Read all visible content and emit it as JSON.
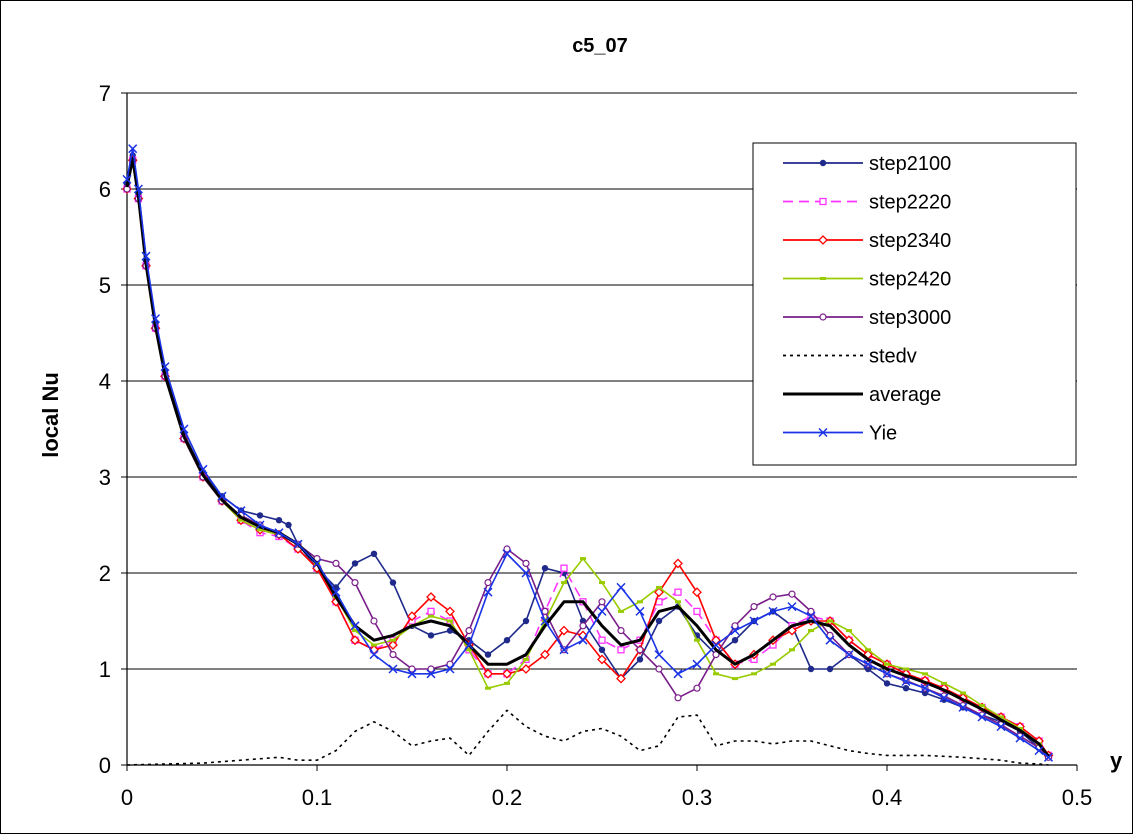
{
  "chart_data": {
    "type": "line",
    "title": "c5_07",
    "xlabel": "y",
    "ylabel": "local Nu",
    "xlim": [
      0,
      0.5
    ],
    "ylim": [
      0,
      7
    ],
    "xticks": [
      "0",
      "0.1",
      "0.2",
      "0.3",
      "0.4",
      "0.5"
    ],
    "yticks": [
      "0",
      "1",
      "2",
      "3",
      "4",
      "5",
      "6",
      "7"
    ],
    "grid": "horizontal",
    "legend_position": "top-right",
    "series": [
      {
        "name": "step2100",
        "color": "#1f2a8a",
        "marker": "dot",
        "dash": "",
        "x": [
          0,
          0.003,
          0.006,
          0.01,
          0.015,
          0.02,
          0.03,
          0.04,
          0.05,
          0.06,
          0.07,
          0.08,
          0.085,
          0.09,
          0.1,
          0.11,
          0.12,
          0.13,
          0.14,
          0.15,
          0.16,
          0.17,
          0.18,
          0.19,
          0.2,
          0.21,
          0.22,
          0.23,
          0.24,
          0.25,
          0.26,
          0.27,
          0.28,
          0.29,
          0.3,
          0.31,
          0.32,
          0.33,
          0.34,
          0.35,
          0.36,
          0.37,
          0.38,
          0.39,
          0.4,
          0.41,
          0.42,
          0.43,
          0.44,
          0.45,
          0.46,
          0.47,
          0.48,
          0.485
        ],
        "y": [
          6.05,
          6.35,
          5.95,
          5.25,
          4.6,
          4.1,
          3.45,
          3.05,
          2.8,
          2.65,
          2.6,
          2.55,
          2.5,
          2.3,
          2.05,
          1.85,
          2.1,
          2.2,
          1.9,
          1.45,
          1.35,
          1.4,
          1.3,
          1.15,
          1.3,
          1.5,
          2.05,
          2.0,
          1.5,
          1.2,
          0.9,
          1.1,
          1.5,
          1.65,
          1.35,
          1.15,
          1.3,
          1.5,
          1.6,
          1.45,
          1.0,
          1.0,
          1.15,
          1.0,
          0.85,
          0.8,
          0.75,
          0.68,
          0.6,
          0.52,
          0.45,
          0.35,
          0.18,
          0.08
        ]
      },
      {
        "name": "step2220",
        "color": "#ff33ff",
        "marker": "square",
        "dash": "10,6",
        "x": [
          0,
          0.003,
          0.006,
          0.01,
          0.015,
          0.02,
          0.03,
          0.04,
          0.05,
          0.06,
          0.07,
          0.08,
          0.09,
          0.1,
          0.11,
          0.12,
          0.13,
          0.14,
          0.15,
          0.16,
          0.17,
          0.18,
          0.19,
          0.2,
          0.21,
          0.22,
          0.23,
          0.24,
          0.25,
          0.26,
          0.27,
          0.28,
          0.29,
          0.3,
          0.31,
          0.32,
          0.33,
          0.34,
          0.35,
          0.36,
          0.37,
          0.38,
          0.39,
          0.4,
          0.41,
          0.42,
          0.43,
          0.44,
          0.45,
          0.46,
          0.47,
          0.48,
          0.485
        ],
        "y": [
          6.0,
          6.3,
          5.9,
          5.2,
          4.55,
          4.05,
          3.4,
          3.0,
          2.75,
          2.55,
          2.42,
          2.38,
          2.25,
          2.05,
          1.7,
          1.3,
          1.2,
          1.3,
          1.5,
          1.6,
          1.5,
          1.2,
          0.95,
          0.95,
          1.1,
          1.6,
          2.05,
          1.7,
          1.3,
          1.2,
          1.3,
          1.7,
          1.8,
          1.6,
          1.3,
          1.05,
          1.1,
          1.25,
          1.45,
          1.55,
          1.5,
          1.3,
          1.15,
          1.05,
          0.95,
          0.88,
          0.8,
          0.7,
          0.6,
          0.5,
          0.4,
          0.25,
          0.1
        ]
      },
      {
        "name": "step2340",
        "color": "#ff0000",
        "marker": "diamond",
        "dash": "",
        "x": [
          0,
          0.003,
          0.006,
          0.01,
          0.015,
          0.02,
          0.03,
          0.04,
          0.05,
          0.06,
          0.07,
          0.08,
          0.09,
          0.1,
          0.11,
          0.12,
          0.13,
          0.14,
          0.15,
          0.16,
          0.17,
          0.18,
          0.19,
          0.2,
          0.21,
          0.22,
          0.23,
          0.24,
          0.25,
          0.26,
          0.27,
          0.28,
          0.29,
          0.3,
          0.31,
          0.32,
          0.33,
          0.34,
          0.35,
          0.36,
          0.37,
          0.38,
          0.39,
          0.4,
          0.41,
          0.42,
          0.43,
          0.44,
          0.45,
          0.46,
          0.47,
          0.48,
          0.485
        ],
        "y": [
          6.0,
          6.3,
          5.9,
          5.2,
          4.55,
          4.05,
          3.4,
          3.0,
          2.75,
          2.55,
          2.45,
          2.4,
          2.25,
          2.05,
          1.7,
          1.3,
          1.2,
          1.25,
          1.55,
          1.75,
          1.6,
          1.25,
          0.95,
          0.95,
          1.0,
          1.15,
          1.4,
          1.35,
          1.1,
          0.9,
          1.2,
          1.8,
          2.1,
          1.8,
          1.3,
          1.05,
          1.15,
          1.3,
          1.4,
          1.5,
          1.5,
          1.3,
          1.15,
          1.05,
          0.95,
          0.88,
          0.8,
          0.7,
          0.6,
          0.5,
          0.4,
          0.25,
          0.1
        ]
      },
      {
        "name": "step2420",
        "color": "#99cc00",
        "marker": "dash",
        "dash": "",
        "x": [
          0,
          0.003,
          0.006,
          0.01,
          0.015,
          0.02,
          0.03,
          0.04,
          0.05,
          0.06,
          0.07,
          0.08,
          0.09,
          0.1,
          0.11,
          0.12,
          0.13,
          0.14,
          0.15,
          0.16,
          0.17,
          0.18,
          0.19,
          0.2,
          0.21,
          0.22,
          0.23,
          0.24,
          0.25,
          0.26,
          0.27,
          0.28,
          0.29,
          0.3,
          0.31,
          0.32,
          0.33,
          0.34,
          0.35,
          0.36,
          0.37,
          0.38,
          0.39,
          0.4,
          0.41,
          0.42,
          0.43,
          0.44,
          0.45,
          0.46,
          0.47,
          0.48,
          0.485
        ],
        "y": [
          6.0,
          6.3,
          5.9,
          5.2,
          4.55,
          4.05,
          3.4,
          3.0,
          2.75,
          2.55,
          2.45,
          2.4,
          2.3,
          2.1,
          1.75,
          1.4,
          1.25,
          1.3,
          1.45,
          1.55,
          1.5,
          1.2,
          0.8,
          0.85,
          1.1,
          1.5,
          1.9,
          2.15,
          1.9,
          1.6,
          1.7,
          1.85,
          1.7,
          1.3,
          0.95,
          0.9,
          0.95,
          1.05,
          1.2,
          1.4,
          1.5,
          1.4,
          1.2,
          1.05,
          1.0,
          0.95,
          0.85,
          0.75,
          0.62,
          0.5,
          0.38,
          0.22,
          0.1
        ]
      },
      {
        "name": "step3000",
        "color": "#7a1f8a",
        "marker": "circle",
        "dash": "",
        "x": [
          0,
          0.003,
          0.006,
          0.01,
          0.015,
          0.02,
          0.03,
          0.04,
          0.05,
          0.06,
          0.07,
          0.08,
          0.09,
          0.1,
          0.11,
          0.12,
          0.13,
          0.14,
          0.15,
          0.16,
          0.17,
          0.18,
          0.19,
          0.2,
          0.21,
          0.22,
          0.23,
          0.24,
          0.25,
          0.26,
          0.27,
          0.28,
          0.29,
          0.3,
          0.31,
          0.32,
          0.33,
          0.34,
          0.35,
          0.36,
          0.37,
          0.38,
          0.39,
          0.4,
          0.41,
          0.42,
          0.43,
          0.44,
          0.45,
          0.46,
          0.47,
          0.48,
          0.485
        ],
        "y": [
          6.0,
          6.3,
          5.9,
          5.2,
          4.55,
          4.05,
          3.4,
          3.0,
          2.75,
          2.6,
          2.5,
          2.4,
          2.3,
          2.15,
          2.1,
          1.9,
          1.5,
          1.15,
          1.0,
          1.0,
          1.05,
          1.4,
          1.9,
          2.25,
          2.1,
          1.6,
          1.2,
          1.45,
          1.7,
          1.4,
          1.2,
          1.0,
          0.7,
          0.8,
          1.15,
          1.45,
          1.65,
          1.75,
          1.78,
          1.6,
          1.35,
          1.15,
          1.05,
          0.95,
          0.88,
          0.8,
          0.72,
          0.62,
          0.52,
          0.42,
          0.3,
          0.18,
          0.08
        ]
      },
      {
        "name": "stedv",
        "color": "#000000",
        "marker": "none",
        "dash": "3,4",
        "x": [
          0,
          0.02,
          0.04,
          0.06,
          0.08,
          0.09,
          0.1,
          0.11,
          0.12,
          0.13,
          0.14,
          0.15,
          0.16,
          0.17,
          0.18,
          0.19,
          0.2,
          0.21,
          0.22,
          0.23,
          0.24,
          0.25,
          0.26,
          0.27,
          0.28,
          0.29,
          0.3,
          0.31,
          0.32,
          0.33,
          0.34,
          0.35,
          0.36,
          0.37,
          0.38,
          0.39,
          0.4,
          0.42,
          0.44,
          0.46,
          0.47,
          0.48,
          0.485
        ],
        "y": [
          0.0,
          0.01,
          0.02,
          0.05,
          0.08,
          0.05,
          0.05,
          0.15,
          0.35,
          0.45,
          0.35,
          0.2,
          0.25,
          0.28,
          0.1,
          0.35,
          0.57,
          0.4,
          0.3,
          0.25,
          0.35,
          0.38,
          0.3,
          0.15,
          0.2,
          0.5,
          0.52,
          0.2,
          0.25,
          0.25,
          0.22,
          0.25,
          0.25,
          0.2,
          0.15,
          0.12,
          0.1,
          0.1,
          0.08,
          0.05,
          0.02,
          0.01,
          0.0
        ]
      },
      {
        "name": "average",
        "color": "#000000",
        "marker": "none",
        "dash": "",
        "width": 3,
        "x": [
          0,
          0.003,
          0.006,
          0.01,
          0.015,
          0.02,
          0.03,
          0.04,
          0.05,
          0.06,
          0.07,
          0.08,
          0.09,
          0.1,
          0.11,
          0.12,
          0.13,
          0.14,
          0.15,
          0.16,
          0.17,
          0.18,
          0.19,
          0.2,
          0.21,
          0.22,
          0.23,
          0.24,
          0.25,
          0.26,
          0.27,
          0.28,
          0.29,
          0.3,
          0.31,
          0.32,
          0.33,
          0.34,
          0.35,
          0.36,
          0.37,
          0.38,
          0.39,
          0.4,
          0.41,
          0.42,
          0.43,
          0.44,
          0.45,
          0.46,
          0.47,
          0.48,
          0.485
        ],
        "y": [
          6.02,
          6.32,
          5.92,
          5.22,
          4.57,
          4.06,
          3.42,
          3.02,
          2.76,
          2.58,
          2.48,
          2.42,
          2.3,
          2.1,
          1.75,
          1.45,
          1.3,
          1.35,
          1.45,
          1.5,
          1.45,
          1.25,
          1.05,
          1.05,
          1.15,
          1.45,
          1.7,
          1.7,
          1.45,
          1.25,
          1.3,
          1.6,
          1.65,
          1.45,
          1.2,
          1.05,
          1.15,
          1.3,
          1.45,
          1.5,
          1.45,
          1.25,
          1.1,
          1.0,
          0.93,
          0.86,
          0.78,
          0.68,
          0.58,
          0.47,
          0.36,
          0.22,
          0.09
        ]
      },
      {
        "name": "Yie",
        "color": "#1a33e6",
        "marker": "x",
        "dash": "",
        "x": [
          0,
          0.003,
          0.006,
          0.01,
          0.015,
          0.02,
          0.03,
          0.04,
          0.05,
          0.06,
          0.07,
          0.08,
          0.09,
          0.1,
          0.11,
          0.12,
          0.13,
          0.14,
          0.15,
          0.16,
          0.17,
          0.18,
          0.19,
          0.2,
          0.21,
          0.22,
          0.23,
          0.24,
          0.25,
          0.26,
          0.27,
          0.28,
          0.29,
          0.3,
          0.31,
          0.32,
          0.33,
          0.34,
          0.35,
          0.36,
          0.37,
          0.38,
          0.39,
          0.4,
          0.41,
          0.42,
          0.43,
          0.44,
          0.45,
          0.46,
          0.47,
          0.48,
          0.485
        ],
        "y": [
          6.1,
          6.42,
          6.0,
          5.3,
          4.65,
          4.15,
          3.5,
          3.08,
          2.8,
          2.65,
          2.5,
          2.42,
          2.3,
          2.1,
          1.8,
          1.45,
          1.15,
          1.0,
          0.95,
          0.95,
          1.0,
          1.25,
          1.8,
          2.2,
          2.0,
          1.5,
          1.2,
          1.3,
          1.6,
          1.85,
          1.6,
          1.15,
          0.95,
          1.05,
          1.25,
          1.4,
          1.5,
          1.6,
          1.65,
          1.55,
          1.3,
          1.15,
          1.05,
          0.95,
          0.87,
          0.8,
          0.7,
          0.6,
          0.5,
          0.4,
          0.28,
          0.15,
          0.08
        ]
      }
    ]
  }
}
